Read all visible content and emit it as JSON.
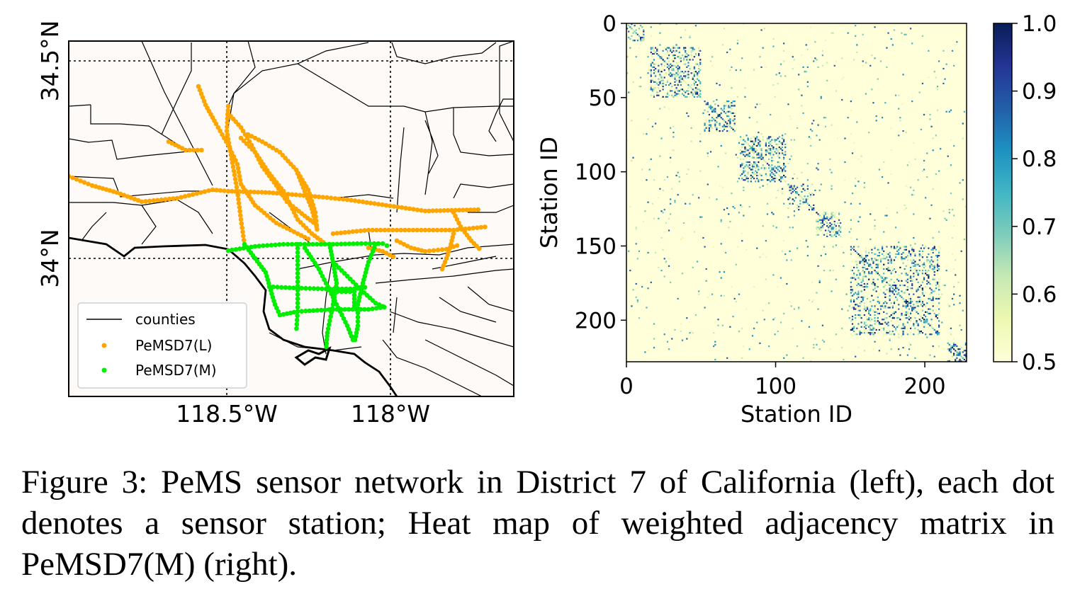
{
  "map_panel": {
    "x_ticks": [
      "118.5°W",
      "118°W"
    ],
    "y_ticks": [
      "34.5°N",
      "34°N"
    ],
    "legend": {
      "items": [
        {
          "label": "counties",
          "marker": "line",
          "color": "#000000"
        },
        {
          "label": "PeMSD7(L)",
          "marker": "dot",
          "color": "#ffa500"
        },
        {
          "label": "PeMSD7(M)",
          "marker": "dot",
          "color": "#00ee00"
        }
      ]
    },
    "background_color": "#fdfaf8"
  },
  "chart_data": [
    {
      "type": "heatmap",
      "title": "",
      "xlabel": "Station ID",
      "ylabel": "Station ID",
      "x_ticks": [
        "0",
        "100",
        "200"
      ],
      "y_ticks": [
        "0",
        "50",
        "100",
        "150",
        "200"
      ],
      "xlim": [
        0,
        228
      ],
      "ylim": [
        0,
        228
      ],
      "y_inverted": true,
      "colorbar": {
        "range": [
          0.5,
          1.0
        ],
        "ticks": [
          "1.0",
          "0.9",
          "0.8",
          "0.7",
          "0.6",
          "0.5"
        ],
        "colormap": "YlGnBu"
      },
      "dense_blocks": [
        {
          "from": 0,
          "to": 12,
          "density": 0.28
        },
        {
          "from": 16,
          "to": 50,
          "density": 0.28
        },
        {
          "from": 52,
          "to": 73,
          "density": 0.3
        },
        {
          "from": 76,
          "to": 107,
          "density": 0.32
        },
        {
          "from": 108,
          "to": 126,
          "density": 0.22
        },
        {
          "from": 127,
          "to": 144,
          "density": 0.28
        },
        {
          "from": 150,
          "to": 210,
          "density": 0.22
        },
        {
          "from": 215,
          "to": 228,
          "density": 0.3
        }
      ]
    }
  ],
  "caption": "Figure 3: PeMS sensor network in District 7 of California (left), each dot denotes a sensor station; Heat map of weighted adjacency matrix in PeMSD7(M) (right)."
}
